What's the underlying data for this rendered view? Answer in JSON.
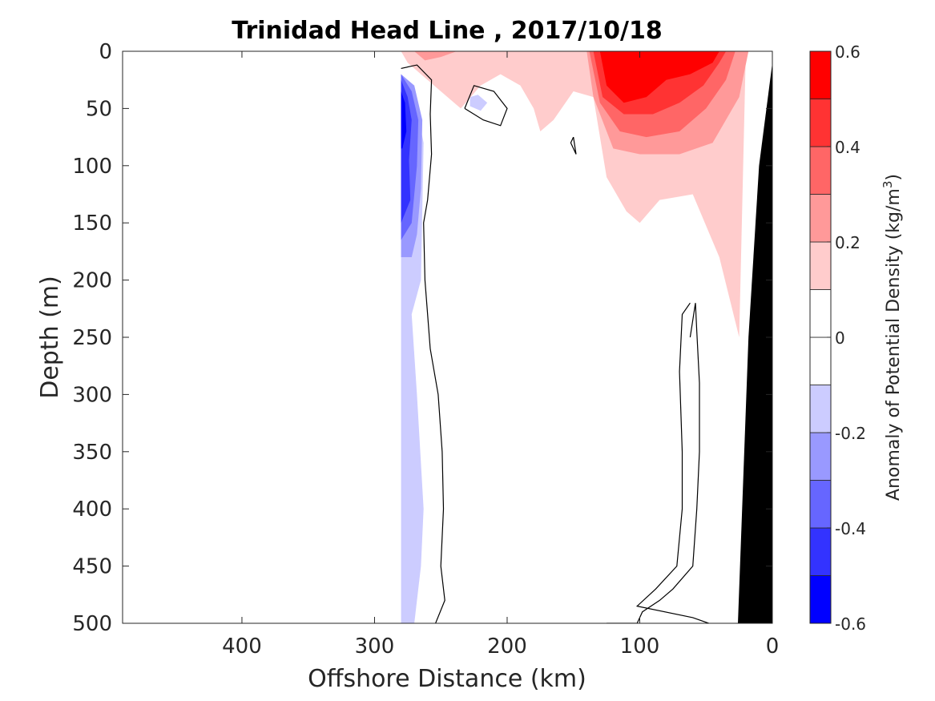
{
  "chart_data": {
    "type": "heatmap",
    "title": "Trinidad Head Line , 2017/10/18",
    "xlabel": "Offshore Distance (km)",
    "ylabel": "Depth (m)",
    "xlim": [
      490,
      0
    ],
    "ylim": [
      0,
      500
    ],
    "x_ticks": [
      400,
      300,
      200,
      100,
      0
    ],
    "y_ticks": [
      0,
      50,
      100,
      150,
      200,
      250,
      300,
      350,
      400,
      450,
      500
    ],
    "x_tick_labels": [
      "400",
      "300",
      "200",
      "100",
      "0"
    ],
    "y_tick_labels": [
      "0",
      "50",
      "100",
      "150",
      "200",
      "250",
      "300",
      "350",
      "400",
      "450",
      "500"
    ],
    "colorbar": {
      "label": "Anomaly of Potential Density (kg/m",
      "label_sup": "3",
      "label_end": ")",
      "range": [
        -0.6,
        0.6
      ],
      "tick_values": [
        -0.6,
        -0.4,
        -0.2,
        0,
        0.2,
        0.4,
        0.6
      ],
      "tick_labels": [
        "-0.6",
        "-0.4",
        "-0.2",
        "0",
        "0.2",
        "0.4",
        "0.6"
      ],
      "level_colors": [
        "#0000ff",
        "#3333ff",
        "#6666ff",
        "#9999ff",
        "#ccccff",
        "#ffffff",
        "#ffffff",
        "#ffcccc",
        "#ff9999",
        "#ff6666",
        "#ff3333",
        "#ff0000"
      ]
    },
    "data_coverage_km": [
      280,
      0
    ],
    "regions": [
      {
        "name": "negative-anomaly-deep",
        "level": -0.1,
        "color": "#ccccff",
        "points": [
          [
            280,
            20
          ],
          [
            270,
            40
          ],
          [
            263,
            80
          ],
          [
            265,
            200
          ],
          [
            272,
            230
          ],
          [
            268,
            300
          ],
          [
            263,
            400
          ],
          [
            265,
            450
          ],
          [
            270,
            500
          ],
          [
            280,
            500
          ]
        ]
      },
      {
        "name": "negative-anomaly-mid",
        "level": -0.2,
        "color": "#9999ff",
        "points": [
          [
            280,
            20
          ],
          [
            270,
            30
          ],
          [
            264,
            60
          ],
          [
            265,
            120
          ],
          [
            268,
            160
          ],
          [
            272,
            180
          ],
          [
            280,
            180
          ]
        ]
      },
      {
        "name": "negative-anomaly-strong",
        "level": -0.3,
        "color": "#6666ff",
        "points": [
          [
            280,
            20
          ],
          [
            272,
            35
          ],
          [
            267,
            60
          ],
          [
            268,
            100
          ],
          [
            272,
            150
          ],
          [
            280,
            165
          ]
        ]
      },
      {
        "name": "negative-anomaly-core",
        "level": -0.4,
        "color": "#3333ff",
        "points": [
          [
            280,
            25
          ],
          [
            275,
            40
          ],
          [
            272,
            60
          ],
          [
            274,
            95
          ],
          [
            273,
            130
          ],
          [
            280,
            150
          ]
        ]
      },
      {
        "name": "negative-anomaly-peak",
        "level": -0.5,
        "color": "#0000ff",
        "points": [
          [
            280,
            35
          ],
          [
            277,
            45
          ],
          [
            276,
            70
          ],
          [
            279,
            85
          ],
          [
            280,
            85
          ]
        ]
      },
      {
        "name": "negative-anomaly-patch",
        "level": -0.2,
        "color": "#ccccff",
        "points": [
          [
            228,
            40
          ],
          [
            222,
            38
          ],
          [
            215,
            45
          ],
          [
            220,
            52
          ],
          [
            228,
            48
          ]
        ]
      },
      {
        "name": "positive-anomaly-shelf",
        "level": 0.1,
        "color": "#ffcccc",
        "points": [
          [
            280,
            0
          ],
          [
            275,
            10
          ],
          [
            265,
            20
          ],
          [
            250,
            35
          ],
          [
            235,
            50
          ],
          [
            220,
            30
          ],
          [
            205,
            20
          ],
          [
            190,
            30
          ],
          [
            180,
            50
          ],
          [
            175,
            70
          ],
          [
            165,
            60
          ],
          [
            150,
            35
          ],
          [
            135,
            40
          ],
          [
            125,
            110
          ],
          [
            110,
            140
          ],
          [
            100,
            150
          ],
          [
            85,
            130
          ],
          [
            60,
            125
          ],
          [
            40,
            180
          ],
          [
            25,
            250
          ],
          [
            20,
            0
          ]
        ]
      },
      {
        "name": "positive-anomaly-1",
        "level": 0.2,
        "color": "#ff9999",
        "points": [
          [
            270,
            0
          ],
          [
            262,
            8
          ],
          [
            250,
            5
          ],
          [
            238,
            0
          ]
        ]
      },
      {
        "name": "positive-anomaly-2",
        "level": 0.2,
        "color": "#ff9999",
        "points": [
          [
            140,
            0
          ],
          [
            135,
            40
          ],
          [
            120,
            85
          ],
          [
            100,
            90
          ],
          [
            70,
            90
          ],
          [
            45,
            80
          ],
          [
            25,
            40
          ],
          [
            18,
            0
          ]
        ]
      },
      {
        "name": "positive-anomaly-3",
        "level": 0.3,
        "color": "#ff6666",
        "points": [
          [
            138,
            0
          ],
          [
            130,
            45
          ],
          [
            115,
            70
          ],
          [
            95,
            75
          ],
          [
            70,
            70
          ],
          [
            50,
            50
          ],
          [
            35,
            25
          ],
          [
            28,
            0
          ]
        ]
      },
      {
        "name": "positive-anomaly-4",
        "level": 0.4,
        "color": "#ff3333",
        "points": [
          [
            135,
            0
          ],
          [
            128,
            40
          ],
          [
            112,
            55
          ],
          [
            90,
            55
          ],
          [
            70,
            45
          ],
          [
            52,
            30
          ],
          [
            40,
            10
          ],
          [
            35,
            0
          ]
        ]
      },
      {
        "name": "positive-anomaly-5",
        "level": 0.5,
        "color": "#ff0000",
        "points": [
          [
            130,
            0
          ],
          [
            125,
            30
          ],
          [
            112,
            45
          ],
          [
            95,
            40
          ],
          [
            80,
            25
          ],
          [
            62,
            20
          ],
          [
            45,
            10
          ],
          [
            40,
            0
          ]
        ]
      },
      {
        "name": "bathymetry",
        "level": null,
        "color": "#000000",
        "points": [
          [
            0,
            10
          ],
          [
            10,
            100
          ],
          [
            18,
            250
          ],
          [
            26,
            500
          ],
          [
            0,
            500
          ]
        ]
      }
    ],
    "contours": [
      {
        "name": "zero-contour-offshore",
        "points": [
          [
            280,
            15
          ],
          [
            268,
            12
          ],
          [
            257,
            25
          ],
          [
            258,
            55
          ],
          [
            257,
            90
          ],
          [
            260,
            130
          ],
          [
            263,
            150
          ],
          [
            262,
            200
          ],
          [
            258,
            260
          ],
          [
            252,
            300
          ],
          [
            249,
            350
          ],
          [
            248,
            400
          ],
          [
            250,
            450
          ],
          [
            247,
            480
          ],
          [
            254,
            500
          ]
        ]
      },
      {
        "name": "zero-contour-eddy",
        "points": [
          [
            232,
            50
          ],
          [
            225,
            30
          ],
          [
            210,
            35
          ],
          [
            200,
            50
          ],
          [
            205,
            65
          ],
          [
            218,
            60
          ],
          [
            232,
            50
          ]
        ]
      },
      {
        "name": "zero-contour-spike",
        "points": [
          [
            150,
            75
          ],
          [
            148,
            90
          ],
          [
            152,
            80
          ],
          [
            150,
            75
          ]
        ]
      },
      {
        "name": "zero-contour-nearshore",
        "points": [
          [
            62,
            250
          ],
          [
            58,
            220
          ],
          [
            57,
            245
          ],
          [
            55,
            290
          ],
          [
            55,
            350
          ],
          [
            57,
            400
          ],
          [
            60,
            450
          ],
          [
            75,
            470
          ],
          [
            85,
            480
          ],
          [
            98,
            490
          ],
          [
            102,
            500
          ],
          [
            125,
            500
          ]
        ]
      },
      {
        "name": "zero-contour-nearshore-2",
        "points": [
          [
            62,
            220
          ],
          [
            68,
            230
          ],
          [
            70,
            280
          ],
          [
            68,
            350
          ],
          [
            68,
            400
          ],
          [
            72,
            450
          ],
          [
            88,
            470
          ],
          [
            102,
            485
          ],
          [
            60,
            495
          ],
          [
            48,
            500
          ]
        ]
      }
    ]
  }
}
